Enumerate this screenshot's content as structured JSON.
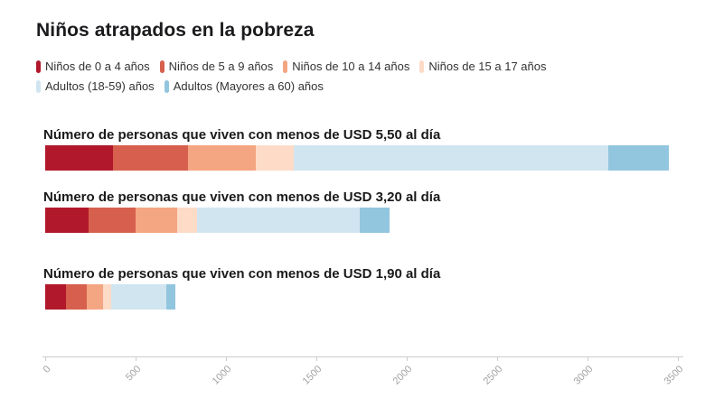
{
  "title": "Niños atrapados en la pobreza",
  "chart_data": {
    "type": "bar",
    "variant": "stacked-horizontal",
    "title": "Niños atrapados en la pobreza",
    "legend_position": "top",
    "grid": false,
    "xlim": [
      0,
      3500
    ],
    "x_ticks": [
      "0",
      "500",
      "1000",
      "1500",
      "2000",
      "2500",
      "3000",
      "3500"
    ],
    "series": [
      {
        "name": "Niños de 0 a 4 años",
        "color": "#b2182b"
      },
      {
        "name": "Niños de 5 a 9 años",
        "color": "#d6604d"
      },
      {
        "name": "Niños de 10 a 14 años",
        "color": "#f4a582"
      },
      {
        "name": "Niños de 15 a 17 años",
        "color": "#fddbc7"
      },
      {
        "name": "Adultos (18-59) años",
        "color": "#d1e5f0"
      },
      {
        "name": "Adultos (Mayores a 60) años",
        "color": "#92c5de"
      }
    ],
    "bars": [
      {
        "label": "Número de personas que viven con menos de USD 5,50 al día",
        "values": [
          375,
          415,
          375,
          210,
          1740,
          335
        ],
        "total": 3450
      },
      {
        "label": "Número de personas que viven con menos de USD 3,20 al día",
        "values": [
          240,
          260,
          230,
          110,
          900,
          165
        ],
        "total": 1905
      },
      {
        "label": "Número de personas que viven con menos de USD 1,90 al día",
        "values": [
          115,
          115,
          90,
          45,
          305,
          50
        ],
        "total": 720
      }
    ],
    "colors": {
      "axis_line": "#cccccc",
      "tick_label": "#a3a3a3",
      "title_text": "#1b1b1e",
      "legend_text": "#333333",
      "bar_label_text": "#1a1a1a",
      "background": "#ffffff"
    }
  }
}
